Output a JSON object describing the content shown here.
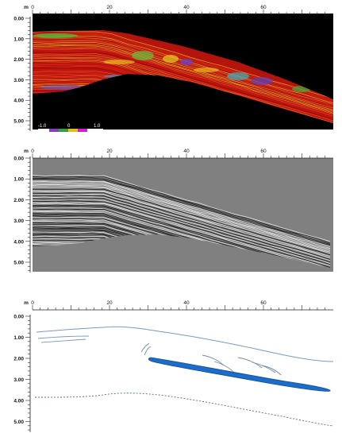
{
  "unit_label": "m",
  "x_ticks": [
    "0",
    "20",
    "40",
    "60"
  ],
  "y_ticks": [
    "0.00",
    "1.00",
    "2.00",
    "3.00",
    "4.00",
    "5.00"
  ],
  "colorbar": {
    "labels": [
      "-1.0",
      "0",
      "1.0"
    ]
  },
  "panels": [
    {
      "kind": "attribute-section",
      "colors": {
        "background": "#000000",
        "dominant": "#cc1a10",
        "secondary": "#f0d020"
      }
    },
    {
      "kind": "grayscale-section",
      "colors": {
        "background": "#808080"
      }
    },
    {
      "kind": "interpretation",
      "colors": {
        "reflector_line": "#7a9ab8",
        "anomaly_fill": "#1a6dcc",
        "base_line": "#1a4a80"
      }
    }
  ]
}
